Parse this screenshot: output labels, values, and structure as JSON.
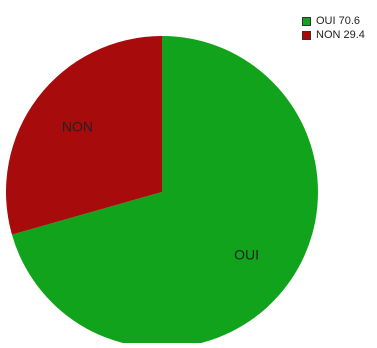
{
  "chart_data": {
    "type": "pie",
    "slices": [
      {
        "label": "OUI",
        "value": 70.6,
        "color": "#11a31b"
      },
      {
        "label": "NON",
        "value": 29.4,
        "color": "#a80b0b"
      }
    ],
    "legend": {
      "position": "top-right",
      "items": [
        {
          "text": "OUI 70.6",
          "color": "#11a31b"
        },
        {
          "text": "NON 29.4",
          "color": "#a80b0b"
        }
      ]
    }
  }
}
